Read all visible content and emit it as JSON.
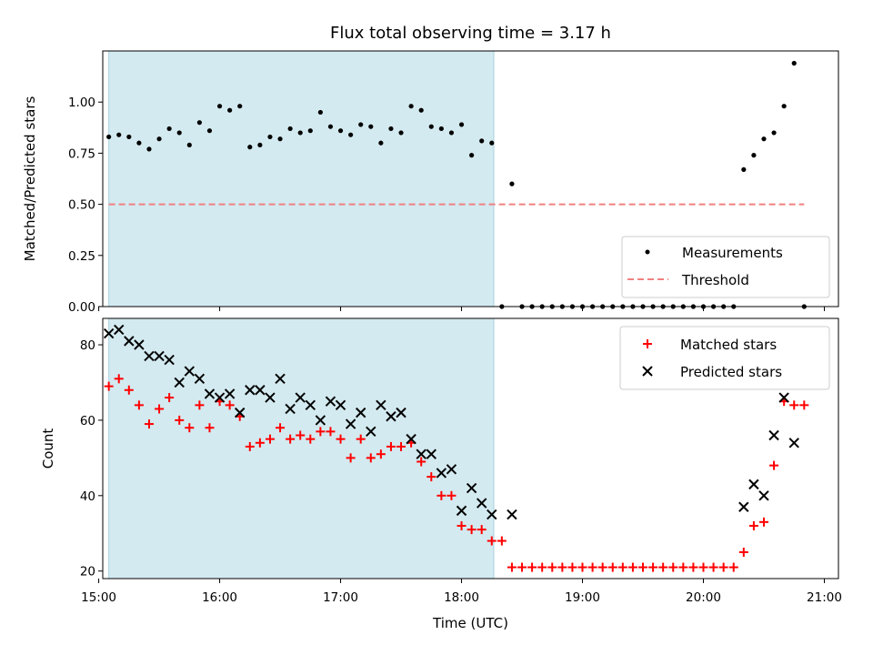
{
  "chart_data": [
    {
      "type": "scatter",
      "title": "Flux total observing time = 3.17 h",
      "ylabel": "Matched/Predicted stars",
      "xlim": [
        "15:02",
        "21:07"
      ],
      "ylim": [
        0,
        1.25
      ],
      "yticks": [
        "0.00",
        "0.25",
        "0.50",
        "0.75",
        "1.00"
      ],
      "ytick_values": [
        0,
        0.25,
        0.5,
        0.75,
        1.0
      ],
      "grid": false,
      "legend": "lower-right",
      "shaded_region": {
        "x_start": "15:05",
        "x_end": "18:16",
        "color": "#d3eaf0"
      },
      "threshold": {
        "name": "Threshold",
        "value": 0.5,
        "x_start": "15:05",
        "x_end": "20:50",
        "color": "#f08080"
      },
      "series": [
        {
          "name": "Measurements",
          "color": "#000000",
          "marker": "dot",
          "x": [
            "15:05",
            "15:10",
            "15:15",
            "15:20",
            "15:25",
            "15:30",
            "15:35",
            "15:40",
            "15:45",
            "15:50",
            "15:55",
            "16:00",
            "16:05",
            "16:10",
            "16:15",
            "16:20",
            "16:25",
            "16:30",
            "16:35",
            "16:40",
            "16:45",
            "16:50",
            "16:55",
            "17:00",
            "17:05",
            "17:10",
            "17:15",
            "17:20",
            "17:25",
            "17:30",
            "17:35",
            "17:40",
            "17:45",
            "17:50",
            "17:55",
            "18:00",
            "18:05",
            "18:10",
            "18:15",
            "18:20",
            "18:25",
            "18:30",
            "18:35",
            "18:40",
            "18:45",
            "18:50",
            "18:55",
            "19:00",
            "19:05",
            "19:10",
            "19:15",
            "19:20",
            "19:25",
            "19:30",
            "19:35",
            "19:40",
            "19:45",
            "19:50",
            "19:55",
            "20:00",
            "20:05",
            "20:10",
            "20:15",
            "20:20",
            "20:25",
            "20:30",
            "20:35",
            "20:40",
            "20:45",
            "20:50"
          ],
          "y": [
            0.83,
            0.84,
            0.83,
            0.8,
            0.77,
            0.82,
            0.87,
            0.85,
            0.79,
            0.9,
            0.86,
            0.98,
            0.96,
            0.98,
            0.78,
            0.79,
            0.83,
            0.82,
            0.87,
            0.85,
            0.86,
            0.95,
            0.88,
            0.86,
            0.84,
            0.89,
            0.88,
            0.8,
            0.87,
            0.85,
            0.98,
            0.96,
            0.88,
            0.87,
            0.85,
            0.89,
            0.74,
            0.81,
            0.8,
            0.0,
            0.6,
            0.0,
            0.0,
            0.0,
            0.0,
            0.0,
            0.0,
            0.0,
            0.0,
            0.0,
            0.0,
            0.0,
            0.0,
            0.0,
            0.0,
            0.0,
            0.0,
            0.0,
            0.0,
            0.0,
            0.0,
            0.0,
            0.0,
            0.67,
            0.74,
            0.82,
            0.85,
            0.98,
            1.19,
            0.0
          ]
        }
      ]
    },
    {
      "type": "scatter",
      "xlabel": "Time (UTC)",
      "ylabel": "Count",
      "xlim": [
        "15:02",
        "21:07"
      ],
      "xticks": [
        "15:00",
        "16:00",
        "17:00",
        "18:00",
        "19:00",
        "20:00",
        "21:00"
      ],
      "ylim": [
        18,
        87
      ],
      "yticks": [
        "20",
        "40",
        "60",
        "80"
      ],
      "ytick_values": [
        20,
        40,
        60,
        80
      ],
      "grid": false,
      "legend": "upper-right",
      "shaded_region": {
        "x_start": "15:05",
        "x_end": "18:16",
        "color": "#d3eaf0"
      },
      "series": [
        {
          "name": "Matched stars",
          "color": "#ff0000",
          "marker": "plus",
          "x": [
            "15:05",
            "15:10",
            "15:15",
            "15:20",
            "15:25",
            "15:30",
            "15:35",
            "15:40",
            "15:45",
            "15:50",
            "15:55",
            "16:00",
            "16:05",
            "16:10",
            "16:15",
            "16:20",
            "16:25",
            "16:30",
            "16:35",
            "16:40",
            "16:45",
            "16:50",
            "16:55",
            "17:00",
            "17:05",
            "17:10",
            "17:15",
            "17:20",
            "17:25",
            "17:30",
            "17:35",
            "17:40",
            "17:45",
            "17:50",
            "17:55",
            "18:00",
            "18:05",
            "18:10",
            "18:15",
            "18:20",
            "18:25",
            "18:30",
            "18:35",
            "18:40",
            "18:45",
            "18:50",
            "18:55",
            "19:00",
            "19:05",
            "19:10",
            "19:15",
            "19:20",
            "19:25",
            "19:30",
            "19:35",
            "19:40",
            "19:45",
            "19:50",
            "19:55",
            "20:00",
            "20:05",
            "20:10",
            "20:15",
            "20:20",
            "20:25",
            "20:30",
            "20:35",
            "20:40",
            "20:45",
            "20:50"
          ],
          "y": [
            69,
            71,
            68,
            64,
            59,
            63,
            66,
            60,
            58,
            64,
            58,
            65,
            64,
            61,
            53,
            54,
            55,
            58,
            55,
            56,
            55,
            57,
            57,
            55,
            50,
            55,
            50,
            51,
            53,
            53,
            54,
            49,
            45,
            40,
            40,
            32,
            31,
            31,
            28,
            28,
            21,
            21,
            21,
            21,
            21,
            21,
            21,
            21,
            21,
            21,
            21,
            21,
            21,
            21,
            21,
            21,
            21,
            21,
            21,
            21,
            21,
            21,
            21,
            25,
            32,
            33,
            48,
            65,
            64,
            64
          ]
        },
        {
          "name": "Predicted stars",
          "color": "#000000",
          "marker": "x",
          "x": [
            "15:05",
            "15:10",
            "15:15",
            "15:20",
            "15:25",
            "15:30",
            "15:35",
            "15:40",
            "15:45",
            "15:50",
            "15:55",
            "16:00",
            "16:05",
            "16:10",
            "16:15",
            "16:20",
            "16:25",
            "16:30",
            "16:35",
            "16:40",
            "16:45",
            "16:50",
            "16:55",
            "17:00",
            "17:05",
            "17:10",
            "17:15",
            "17:20",
            "17:25",
            "17:30",
            "17:35",
            "17:40",
            "17:45",
            "17:50",
            "17:55",
            "18:00",
            "18:05",
            "18:10",
            "18:15",
            "18:25",
            "20:20",
            "20:25",
            "20:30",
            "20:35",
            "20:40",
            "20:45"
          ],
          "y": [
            83,
            84,
            81,
            80,
            77,
            77,
            76,
            70,
            73,
            71,
            67,
            66,
            67,
            62,
            68,
            68,
            66,
            71,
            63,
            66,
            64,
            60,
            65,
            64,
            59,
            62,
            57,
            64,
            61,
            62,
            55,
            51,
            51,
            46,
            47,
            36,
            42,
            38,
            35,
            35,
            37,
            43,
            40,
            56,
            66,
            54
          ]
        }
      ]
    }
  ]
}
